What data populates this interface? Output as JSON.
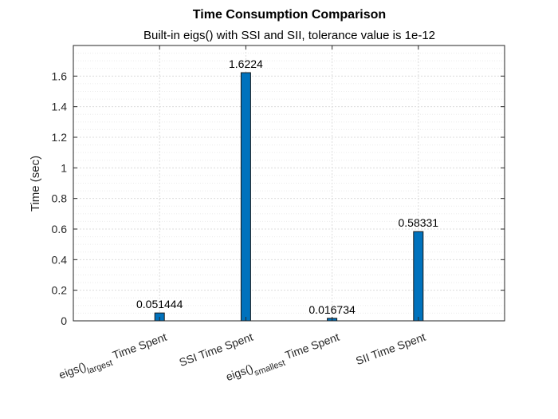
{
  "chart_data": {
    "type": "bar",
    "title": "Time Consumption Comparison",
    "subtitle": "Built-in eigs() with SSI and SII, tolerance value is 1e-12",
    "xlabel": "",
    "ylabel": "Time (sec)",
    "categories": [
      {
        "label": "eigs()",
        "subscript": "largest",
        "suffix": " Time Spent"
      },
      {
        "label": "SSI Time Spent",
        "subscript": "",
        "suffix": ""
      },
      {
        "label": "eigs()",
        "subscript": "smallest",
        "suffix": " Time Spent"
      },
      {
        "label": "SII Time Spent",
        "subscript": "",
        "suffix": ""
      }
    ],
    "values": [
      0.051444,
      1.6224,
      0.016734,
      0.58331
    ],
    "data_labels": [
      "0.051444",
      "1.6224",
      "0.016734",
      "0.58331"
    ],
    "ylim": [
      0,
      1.8
    ],
    "yticks": [
      0,
      0.2,
      0.4,
      0.6,
      0.8,
      1,
      1.2,
      1.4,
      1.6
    ],
    "ytick_labels": [
      "0",
      "0.2",
      "0.4",
      "0.6",
      "0.8",
      "1",
      "1.2",
      "1.4",
      "1.6"
    ],
    "grid": true,
    "minor_grid": true,
    "bar_color": "#0072BD",
    "bar_edge_color": "#1a1a1a"
  }
}
